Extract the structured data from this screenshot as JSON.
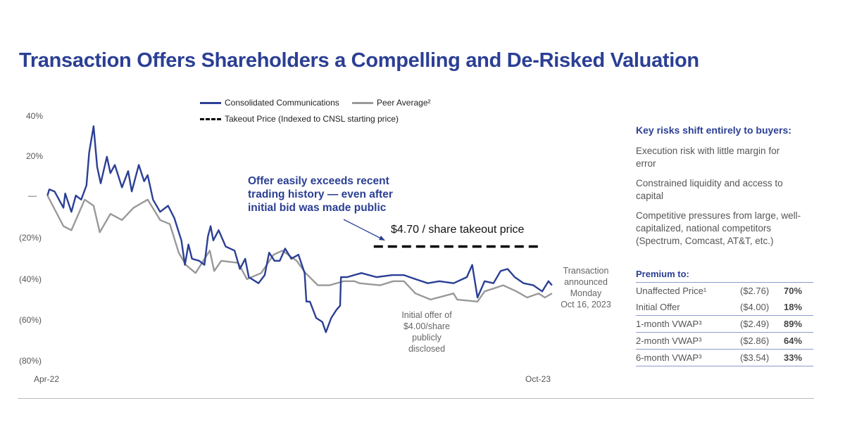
{
  "title": "Transaction Offers Shareholders a Compelling and De-Risked Valuation",
  "colors": {
    "title": "#2b3f94",
    "cnsl": "#2b3f94",
    "peer": "#999999",
    "takeout": "#000000"
  },
  "chart_data": {
    "type": "line",
    "title": "",
    "legend": {
      "placement": "top-center",
      "items": [
        "Consolidated Communications",
        "Peer Average²",
        "Takeout Price (Indexed to CNSL starting price)"
      ]
    },
    "y_ticks": [
      "40%",
      "20%",
      "—",
      "(20%)",
      "(40%)",
      "(60%)",
      "(80%)"
    ],
    "y_tick_values": [
      40,
      20,
      0,
      -20,
      -40,
      -60,
      -80
    ],
    "ylim": [
      -80,
      40
    ],
    "x_ticks": [
      "Apr-22",
      "Oct-23"
    ],
    "x_tick_dates": [
      "2022-04-01",
      "2023-10-01"
    ],
    "grid": false,
    "series": [
      {
        "name": "Consolidated Communications",
        "style": "solid",
        "points": [
          [
            "2022-03-26",
            0
          ],
          [
            "2022-03-28",
            3
          ],
          [
            "2022-04-03",
            2
          ],
          [
            "2022-04-13",
            -6
          ],
          [
            "2022-04-15",
            1
          ],
          [
            "2022-04-22",
            -8
          ],
          [
            "2022-04-27",
            0
          ],
          [
            "2022-05-03",
            -2
          ],
          [
            "2022-05-09",
            5
          ],
          [
            "2022-05-12",
            21
          ],
          [
            "2022-05-17",
            34
          ],
          [
            "2022-05-21",
            14
          ],
          [
            "2022-05-25",
            6
          ],
          [
            "2022-06-01",
            19
          ],
          [
            "2022-06-05",
            11
          ],
          [
            "2022-06-10",
            15
          ],
          [
            "2022-06-18",
            4
          ],
          [
            "2022-06-25",
            12
          ],
          [
            "2022-06-29",
            2
          ],
          [
            "2022-07-07",
            15
          ],
          [
            "2022-07-13",
            7
          ],
          [
            "2022-07-17",
            10
          ],
          [
            "2022-07-23",
            -2
          ],
          [
            "2022-07-31",
            -8
          ],
          [
            "2022-08-09",
            -5
          ],
          [
            "2022-08-16",
            -11
          ],
          [
            "2022-08-24",
            -22
          ],
          [
            "2022-08-28",
            -34
          ],
          [
            "2022-09-01",
            -24
          ],
          [
            "2022-09-05",
            -31
          ],
          [
            "2022-09-13",
            -32
          ],
          [
            "2022-09-19",
            -34
          ],
          [
            "2022-09-23",
            -20
          ],
          [
            "2022-09-26",
            -15
          ],
          [
            "2022-09-29",
            -22
          ],
          [
            "2022-10-05",
            -17
          ],
          [
            "2022-10-13",
            -25
          ],
          [
            "2022-10-23",
            -27
          ],
          [
            "2022-10-29",
            -36
          ],
          [
            "2022-11-04",
            -31
          ],
          [
            "2022-11-08",
            -40
          ],
          [
            "2022-11-19",
            -43
          ],
          [
            "2022-11-26",
            -39
          ],
          [
            "2022-12-01",
            -28
          ],
          [
            "2022-12-07",
            -32
          ],
          [
            "2022-12-13",
            -32
          ],
          [
            "2022-12-19",
            -26
          ],
          [
            "2022-12-26",
            -31
          ],
          [
            "2023-01-03",
            -29
          ],
          [
            "2023-01-10",
            -38
          ],
          [
            "2023-01-12",
            -52
          ],
          [
            "2023-01-16",
            -52
          ],
          [
            "2023-01-23",
            -60
          ],
          [
            "2023-01-30",
            -62
          ],
          [
            "2023-02-03",
            -67
          ],
          [
            "2023-02-09",
            -60
          ],
          [
            "2023-02-15",
            -56
          ],
          [
            "2023-02-19",
            -54
          ],
          [
            "2023-02-20",
            -40
          ],
          [
            "2023-02-27",
            -40
          ],
          [
            "2023-03-15",
            -38
          ],
          [
            "2023-04-01",
            -40
          ],
          [
            "2023-04-19",
            -39
          ],
          [
            "2023-05-02",
            -39
          ],
          [
            "2023-05-15",
            -41
          ],
          [
            "2023-05-29",
            -43
          ],
          [
            "2023-06-11",
            -42
          ],
          [
            "2023-06-27",
            -43
          ],
          [
            "2023-07-12",
            -40
          ],
          [
            "2023-07-18",
            -34
          ],
          [
            "2023-07-24",
            -50
          ],
          [
            "2023-08-01",
            -42
          ],
          [
            "2023-08-11",
            -43
          ],
          [
            "2023-08-19",
            -37
          ],
          [
            "2023-08-27",
            -36
          ],
          [
            "2023-09-04",
            -40
          ],
          [
            "2023-09-14",
            -43
          ],
          [
            "2023-09-25",
            -44
          ],
          [
            "2023-10-05",
            -47
          ],
          [
            "2023-10-12",
            -42
          ],
          [
            "2023-10-16",
            -44
          ]
        ]
      },
      {
        "name": "Peer Average²",
        "style": "solid",
        "points": [
          [
            "2022-03-26",
            0
          ],
          [
            "2022-04-13",
            -15
          ],
          [
            "2022-04-22",
            -17
          ],
          [
            "2022-05-07",
            -2
          ],
          [
            "2022-05-17",
            -5
          ],
          [
            "2022-05-24",
            -18
          ],
          [
            "2022-06-05",
            -9
          ],
          [
            "2022-06-18",
            -12
          ],
          [
            "2022-07-01",
            -6
          ],
          [
            "2022-07-17",
            -2
          ],
          [
            "2022-07-31",
            -12
          ],
          [
            "2022-08-11",
            -14
          ],
          [
            "2022-08-21",
            -28
          ],
          [
            "2022-08-29",
            -34
          ],
          [
            "2022-09-09",
            -38
          ],
          [
            "2022-09-25",
            -27
          ],
          [
            "2022-09-30",
            -37
          ],
          [
            "2022-10-08",
            -32
          ],
          [
            "2022-10-27",
            -33
          ],
          [
            "2022-11-06",
            -41
          ],
          [
            "2022-11-22",
            -38
          ],
          [
            "2022-12-06",
            -29
          ],
          [
            "2022-12-16",
            -27
          ],
          [
            "2023-01-01",
            -32
          ],
          [
            "2023-01-11",
            -38
          ],
          [
            "2023-01-25",
            -44
          ],
          [
            "2023-02-07",
            -44
          ],
          [
            "2023-02-23",
            -42
          ],
          [
            "2023-03-07",
            -42
          ],
          [
            "2023-03-13",
            -43
          ],
          [
            "2023-04-05",
            -44
          ],
          [
            "2023-04-20",
            -42
          ],
          [
            "2023-05-02",
            -42
          ],
          [
            "2023-05-15",
            -48
          ],
          [
            "2023-06-01",
            -51
          ],
          [
            "2023-06-27",
            -48
          ],
          [
            "2023-07-01",
            -51
          ],
          [
            "2023-07-24",
            -52
          ],
          [
            "2023-08-01",
            -47
          ],
          [
            "2023-08-22",
            -44
          ],
          [
            "2023-09-06",
            -47
          ],
          [
            "2023-09-18",
            -50
          ],
          [
            "2023-10-01",
            -48
          ],
          [
            "2023-10-08",
            -50
          ],
          [
            "2023-10-16",
            -48
          ]
        ]
      },
      {
        "name": "Takeout Price (Indexed to CNSL starting price)",
        "style": "dashed",
        "points": [
          [
            "2023-03-29",
            -25
          ],
          [
            "2023-10-05",
            -25
          ]
        ]
      }
    ],
    "annotations": [
      {
        "id": "callout",
        "text": "Offer easily exceeds recent trading history — even after initial bid was made public"
      },
      {
        "id": "takeout",
        "text": "$4.70 / share takeout price"
      },
      {
        "id": "initial_offer",
        "lines": [
          "Initial offer of",
          "$4.00/share",
          "publicly",
          "disclosed"
        ]
      },
      {
        "id": "announced",
        "lines": [
          "Transaction",
          "announced",
          "Monday",
          "Oct 16, 2023"
        ]
      }
    ]
  },
  "risks": {
    "heading": "Key risks shift entirely to buyers:",
    "items": [
      "Execution risk with little margin for error",
      "Constrained liquidity and access to capital",
      "Competitive pressures from large, well-capitalized, national competitors (Spectrum, Comcast, AT&T, etc.)"
    ]
  },
  "premium": {
    "heading": "Premium to:",
    "rows": [
      {
        "label": "Unaffected Price¹",
        "price": "($2.76)",
        "premium": "70%"
      },
      {
        "label": "Initial Offer",
        "price": "($4.00)",
        "premium": "18%"
      },
      {
        "label": "1-month VWAP³",
        "price": "($2.49)",
        "premium": "89%"
      },
      {
        "label": "2-month VWAP³",
        "price": "($2.86)",
        "premium": "64%"
      },
      {
        "label": "6-month VWAP³",
        "price": "($3.54)",
        "premium": "33%"
      }
    ]
  }
}
